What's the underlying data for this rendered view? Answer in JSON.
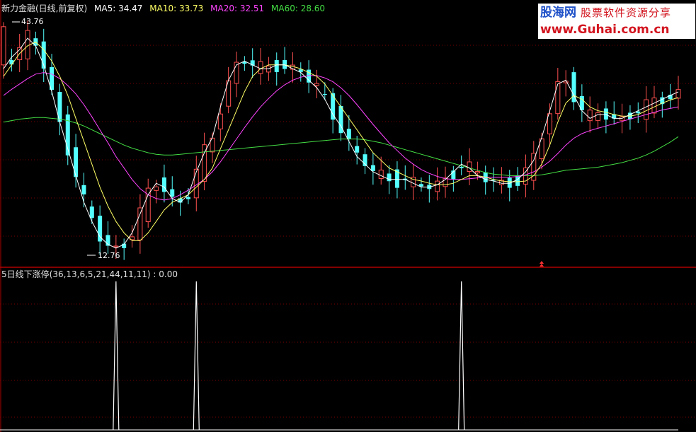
{
  "header": {
    "title": "新力金融(日线,前复权)",
    "ma5": "MA5: 34.47",
    "ma10": "MA10: 33.73",
    "ma20": "MA20: 32.51",
    "ma60": "MA60: 28.60"
  },
  "indicator": {
    "label": "5日线下涨停(36,13,6,5,21,44,11,11) : 0.00"
  },
  "watermark": {
    "brand": "股海网",
    "slogan": "股票软件资源分享",
    "url": "www.Guhai.com.cn"
  },
  "colors": {
    "up": "#ff5050",
    "down": "#54ffff",
    "ma5": "#ffffff",
    "ma10": "#ffff66",
    "ma20": "#ff44ff",
    "ma60": "#44dd44",
    "signal": "#ffffff",
    "grid": "#7a0000"
  },
  "chart_data": {
    "type": "candlestick",
    "price_high_label": "43.76",
    "price_low_label": "12.76",
    "ylim": [
      11.5,
      46.5
    ],
    "ma5": [
      37.5,
      39.0,
      40.0,
      41.5,
      40.5,
      38.0,
      34.5,
      30.5,
      27.0,
      23.5,
      20.0,
      17.5,
      15.5,
      14.5,
      14.0,
      14.5,
      16.0,
      18.5,
      21.0,
      22.5,
      22.0,
      20.5,
      20.0,
      21.0,
      24.0,
      26.5,
      28.5,
      32.5,
      36.0,
      38.0,
      38.5,
      38.0,
      37.5,
      37.5,
      38.0,
      38.0,
      37.5,
      37.0,
      36.0,
      35.0,
      33.5,
      31.5,
      30.0,
      28.0,
      26.0,
      25.0,
      24.0,
      23.5,
      23.0,
      23.0,
      23.0,
      22.5,
      22.0,
      22.0,
      22.3,
      23.0,
      24.0,
      25.0,
      24.5,
      23.5,
      23.0,
      22.8,
      22.5,
      22.5,
      23.0,
      24.0,
      25.5,
      28.5,
      32.0,
      35.5,
      36.0,
      34.0,
      32.0,
      31.0,
      31.5,
      31.5,
      31.0,
      31.0,
      31.5,
      32.0,
      32.5,
      33.0,
      33.5,
      34.0,
      34.47
    ],
    "ma10": [
      36.5,
      38.0,
      39.5,
      40.5,
      41.0,
      40.0,
      38.5,
      36.5,
      34.0,
      31.0,
      28.0,
      25.0,
      22.0,
      19.5,
      17.5,
      16.0,
      15.0,
      15.0,
      16.0,
      17.5,
      19.0,
      20.0,
      20.5,
      21.0,
      22.0,
      23.0,
      24.5,
      27.0,
      29.5,
      32.0,
      34.5,
      36.5,
      37.5,
      38.0,
      38.0,
      38.0,
      37.8,
      37.5,
      37.0,
      36.5,
      35.5,
      34.0,
      32.5,
      31.0,
      29.5,
      28.0,
      26.5,
      25.5,
      24.5,
      24.0,
      23.5,
      23.0,
      22.8,
      22.5,
      22.3,
      22.3,
      22.5,
      23.0,
      23.5,
      23.5,
      23.3,
      23.0,
      22.8,
      22.7,
      22.7,
      22.8,
      23.5,
      25.0,
      27.5,
      30.5,
      33.0,
      34.0,
      33.5,
      32.5,
      32.0,
      31.8,
      31.5,
      31.3,
      31.3,
      31.5,
      32.0,
      32.5,
      33.0,
      33.4,
      33.73
    ],
    "ma20": [
      34.0,
      34.8,
      35.5,
      36.2,
      36.8,
      37.0,
      36.8,
      36.2,
      35.3,
      34.2,
      32.8,
      31.2,
      29.5,
      27.8,
      26.0,
      24.5,
      23.0,
      21.8,
      21.0,
      20.5,
      20.3,
      20.5,
      21.0,
      21.6,
      22.3,
      23.0,
      24.0,
      25.3,
      26.8,
      28.3,
      29.8,
      31.2,
      32.5,
      33.6,
      34.6,
      35.4,
      36.0,
      36.4,
      36.6,
      36.6,
      36.3,
      35.8,
      35.0,
      34.0,
      32.8,
      31.5,
      30.2,
      29.0,
      27.8,
      26.8,
      25.8,
      25.0,
      24.3,
      23.8,
      23.4,
      23.1,
      23.0,
      23.0,
      23.1,
      23.2,
      23.3,
      23.3,
      23.3,
      23.3,
      23.4,
      23.6,
      24.0,
      24.6,
      25.4,
      26.4,
      27.5,
      28.4,
      29.0,
      29.4,
      29.7,
      30.0,
      30.3,
      30.6,
      30.9,
      31.2,
      31.5,
      31.8,
      32.1,
      32.3,
      32.51
    ],
    "ma60": [
      30.5,
      30.7,
      30.9,
      31.0,
      31.1,
      31.1,
      31.0,
      30.9,
      30.7,
      30.4,
      30.0,
      29.5,
      29.0,
      28.5,
      28.0,
      27.5,
      27.1,
      26.8,
      26.5,
      26.3,
      26.2,
      26.2,
      26.3,
      26.4,
      26.5,
      26.6,
      26.7,
      26.8,
      26.9,
      27.0,
      27.1,
      27.2,
      27.3,
      27.4,
      27.5,
      27.6,
      27.7,
      27.8,
      27.9,
      28.0,
      28.1,
      28.2,
      28.3,
      28.3,
      28.3,
      28.2,
      28.0,
      27.8,
      27.5,
      27.2,
      26.9,
      26.6,
      26.3,
      26.0,
      25.7,
      25.4,
      25.1,
      24.8,
      24.5,
      24.2,
      23.9,
      23.7,
      23.6,
      23.5,
      23.5,
      23.5,
      23.5,
      23.6,
      23.8,
      24.0,
      24.2,
      24.3,
      24.4,
      24.5,
      24.6,
      24.8,
      25.0,
      25.2,
      25.5,
      25.8,
      26.2,
      26.7,
      27.3,
      27.9,
      28.6
    ],
    "signal_peaks_index": [
      14,
      24,
      57
    ],
    "signal_value": 0.0
  }
}
